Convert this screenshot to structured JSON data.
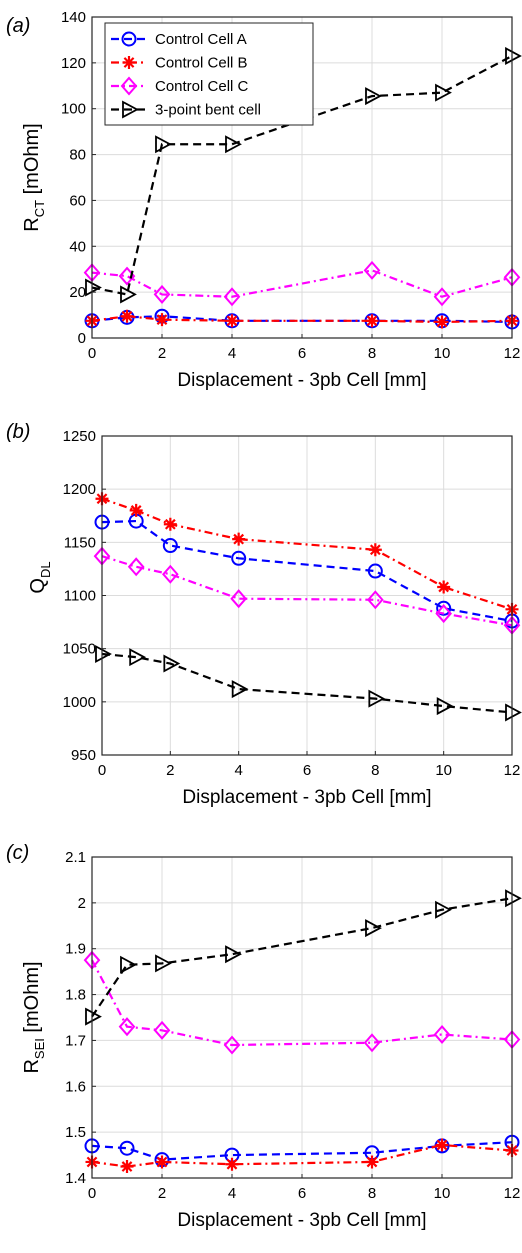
{
  "chart_data": [
    {
      "type": "line",
      "panel_label": "(a)",
      "ylabel_main": "R",
      "ylabel_sub": "CT",
      "ylabel_unit": " [mOhm]",
      "xlabel": "Displacement - 3pb Cell [mm]",
      "xlim": [
        0,
        12
      ],
      "ylim": [
        0,
        140
      ],
      "xticks": [
        0,
        2,
        4,
        6,
        8,
        10,
        12
      ],
      "yticks": [
        0,
        20,
        40,
        60,
        80,
        100,
        120,
        140
      ],
      "grid": true,
      "legend": "top-left",
      "x": [
        0,
        1,
        2,
        4,
        8,
        10,
        12
      ],
      "series": [
        {
          "name": "Control Cell A",
          "values": [
            7.5,
            9.0,
            9.5,
            7.5,
            7.5,
            7.5,
            7.0
          ],
          "color": "#0000ff",
          "dash": "dashed",
          "marker": "circle"
        },
        {
          "name": "Control Cell B",
          "values": [
            7.5,
            9.5,
            8.0,
            7.5,
            7.5,
            7.0,
            7.5
          ],
          "color": "#ff0000",
          "dash": "dashdot",
          "marker": "asterisk"
        },
        {
          "name": "Control Cell C",
          "values": [
            28.5,
            27.0,
            19.0,
            18.0,
            29.5,
            18.0,
            26.5
          ],
          "color": "#ff00ff",
          "dash": "dashdot",
          "marker": "diamond"
        },
        {
          "name": "3-point bent cell",
          "values": [
            22.0,
            19.0,
            84.5,
            84.5,
            105.5,
            107.0,
            123.0
          ],
          "color": "#000000",
          "dash": "dashed",
          "marker": "triangle-right"
        }
      ]
    },
    {
      "type": "line",
      "panel_label": "(b)",
      "ylabel_main": "Q",
      "ylabel_sub": "DL",
      "ylabel_unit": "",
      "xlabel": "Displacement - 3pb Cell [mm]",
      "xlim": [
        0,
        12
      ],
      "ylim": [
        950,
        1250
      ],
      "xticks": [
        0,
        2,
        4,
        6,
        8,
        10,
        12
      ],
      "yticks": [
        950,
        1000,
        1050,
        1100,
        1150,
        1200,
        1250
      ],
      "grid": true,
      "x": [
        0,
        1,
        2,
        4,
        8,
        10,
        12
      ],
      "series": [
        {
          "name": "Control Cell A",
          "values": [
            1169,
            1170,
            1147,
            1135,
            1123,
            1088,
            1076
          ],
          "color": "#0000ff",
          "dash": "dashed",
          "marker": "circle"
        },
        {
          "name": "Control Cell B",
          "values": [
            1191,
            1180,
            1167,
            1153,
            1143,
            1108,
            1087
          ],
          "color": "#ff0000",
          "dash": "dashdot",
          "marker": "asterisk"
        },
        {
          "name": "Control Cell C",
          "values": [
            1137,
            1127,
            1120,
            1097,
            1096,
            1083,
            1072
          ],
          "color": "#ff00ff",
          "dash": "dashdot",
          "marker": "diamond"
        },
        {
          "name": "3-point bent cell",
          "values": [
            1045,
            1042,
            1036,
            1012,
            1003,
            996,
            990
          ],
          "color": "#000000",
          "dash": "dashed",
          "marker": "triangle-right"
        }
      ]
    },
    {
      "type": "line",
      "panel_label": "(c)",
      "ylabel_main": "R",
      "ylabel_sub": "SEI",
      "ylabel_unit": " [mOhm]",
      "xlabel": "Displacement - 3pb Cell [mm]",
      "xlim": [
        0,
        12
      ],
      "ylim": [
        1.4,
        2.1
      ],
      "xticks": [
        0,
        2,
        4,
        6,
        8,
        10,
        12
      ],
      "yticks": [
        1.4,
        1.5,
        1.6,
        1.7,
        1.8,
        1.9,
        2,
        2.1
      ],
      "grid": true,
      "x": [
        0,
        1,
        2,
        4,
        8,
        10,
        12
      ],
      "series": [
        {
          "name": "Control Cell A",
          "values": [
            1.47,
            1.465,
            1.44,
            1.45,
            1.455,
            1.47,
            1.478
          ],
          "color": "#0000ff",
          "dash": "dashed",
          "marker": "circle"
        },
        {
          "name": "Control Cell B",
          "values": [
            1.435,
            1.425,
            1.435,
            1.43,
            1.435,
            1.472,
            1.46
          ],
          "color": "#ff0000",
          "dash": "dashdot",
          "marker": "asterisk"
        },
        {
          "name": "Control Cell C",
          "values": [
            1.875,
            1.73,
            1.722,
            1.69,
            1.695,
            1.713,
            1.702
          ],
          "color": "#ff00ff",
          "dash": "dashdot",
          "marker": "diamond"
        },
        {
          "name": "3-point bent cell",
          "values": [
            1.752,
            1.865,
            1.868,
            1.888,
            1.945,
            1.985,
            2.01
          ],
          "color": "#000000",
          "dash": "dashed",
          "marker": "triangle-right"
        }
      ]
    }
  ]
}
